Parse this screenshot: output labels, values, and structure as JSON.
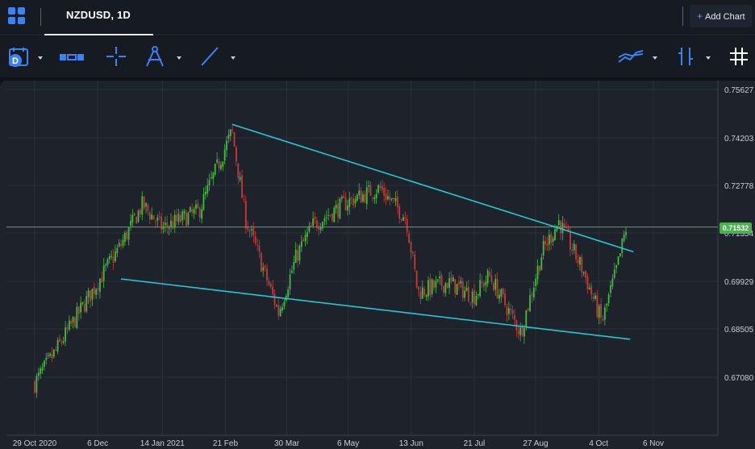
{
  "tab": {
    "label": "NZDUSD, 1D"
  },
  "add_chart": {
    "label": "Add Chart",
    "plus": "+"
  },
  "toolbar": {
    "icons": [
      "calendar-d-icon",
      "range-icon",
      "crosshair-icon",
      "compass-icon",
      "trendline-icon",
      "indicators-icon",
      "candle-style-icon",
      "grid-icon"
    ],
    "calendar_badge": "D"
  },
  "colors": {
    "background": "#1e222b",
    "up": "#3fbf3f",
    "down": "#c63a3a",
    "trendline": "#22c8d6",
    "price_line": "#4caf50",
    "accent": "#3b82f6"
  },
  "chart_data": {
    "type": "candlestick",
    "symbol": "NZDUSD",
    "interval": "1D",
    "y_ticks": [
      "0.75627",
      "0.74203",
      "0.72778",
      "0.71354",
      "0.69929",
      "0.68505",
      "0.67080"
    ],
    "x_ticks": [
      "29 Oct 2020",
      "6 Dec",
      "14 Jan 2021",
      "21 Feb",
      "30 Mar",
      "6 May",
      "13 Jun",
      "21 Jul",
      "27 Aug",
      "4 Oct",
      "6 Nov"
    ],
    "ylim": [
      0.66,
      0.7571
    ],
    "current_price": "0.71532",
    "current_price_value": 0.71532,
    "grid": true,
    "key_points": [
      {
        "date": "2020-10-29",
        "price": 0.669
      },
      {
        "date": "2020-11-10",
        "price": 0.678
      },
      {
        "date": "2020-12-06",
        "price": 0.699
      },
      {
        "date": "2020-12-20",
        "price": 0.71
      },
      {
        "date": "2021-01-02",
        "price": 0.722
      },
      {
        "date": "2021-01-14",
        "price": 0.715
      },
      {
        "date": "2021-02-05",
        "price": 0.72
      },
      {
        "date": "2021-02-25",
        "price": 0.744
      },
      {
        "date": "2021-03-05",
        "price": 0.718
      },
      {
        "date": "2021-03-25",
        "price": 0.69
      },
      {
        "date": "2021-04-05",
        "price": 0.707
      },
      {
        "date": "2021-04-15",
        "price": 0.716
      },
      {
        "date": "2021-05-06",
        "price": 0.723
      },
      {
        "date": "2021-05-25",
        "price": 0.727
      },
      {
        "date": "2021-06-10",
        "price": 0.718
      },
      {
        "date": "2021-06-17",
        "price": 0.696
      },
      {
        "date": "2021-07-05",
        "price": 0.699
      },
      {
        "date": "2021-07-21",
        "price": 0.695
      },
      {
        "date": "2021-07-30",
        "price": 0.701
      },
      {
        "date": "2021-08-18",
        "price": 0.684
      },
      {
        "date": "2021-08-31",
        "price": 0.708
      },
      {
        "date": "2021-09-10",
        "price": 0.717
      },
      {
        "date": "2021-09-25",
        "price": 0.702
      },
      {
        "date": "2021-10-06",
        "price": 0.687
      },
      {
        "date": "2021-10-16",
        "price": 0.705
      },
      {
        "date": "2021-10-21",
        "price": 0.716
      }
    ],
    "trendlines": [
      {
        "name": "upper",
        "start": {
          "date": "2021-02-25",
          "price": 0.746
        },
        "end": {
          "date": "2021-10-25",
          "price": 0.708
        }
      },
      {
        "name": "lower",
        "start": {
          "date": "2020-12-20",
          "price": 0.7
        },
        "end": {
          "date": "2021-10-23",
          "price": 0.682
        }
      }
    ]
  }
}
